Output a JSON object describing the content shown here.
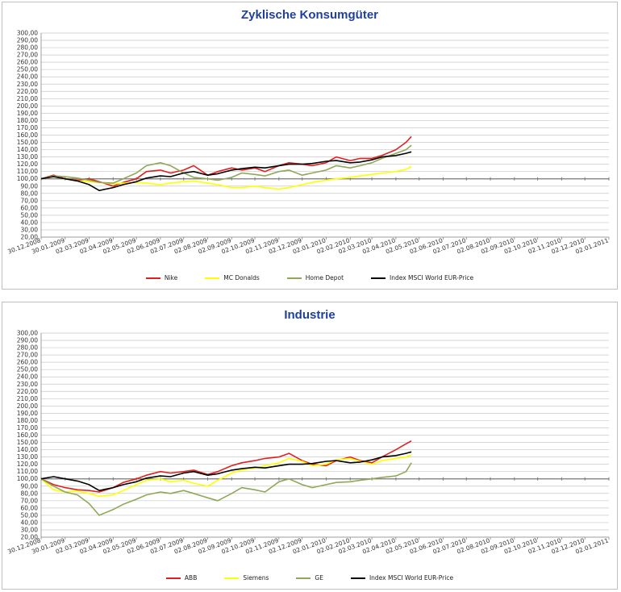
{
  "chart_data": [
    {
      "type": "line",
      "title": "Zyklische Konsumgüter",
      "ylim": [
        20,
        300
      ],
      "y_ticks": [
        "20,00",
        "30,00",
        "40,00",
        "50,00",
        "60,00",
        "70,00",
        "80,00",
        "90,00",
        "100,00",
        "110,00",
        "120,00",
        "130,00",
        "140,00",
        "150,00",
        "160,00",
        "170,00",
        "180,00",
        "190,00",
        "200,00",
        "210,00",
        "220,00",
        "230,00",
        "240,00",
        "250,00",
        "260,00",
        "270,00",
        "280,00",
        "290,00",
        "300,00"
      ],
      "x_ticks": [
        "30.12.2008",
        "30.01.2009",
        "02.03.2009",
        "02.04.2009",
        "02.05.2009",
        "02.06.2009",
        "02.07.2009",
        "02.08.2009",
        "02.09.2009",
        "02.10.2009",
        "02.11.2009",
        "02.12.2009",
        "02.01.2010",
        "02.02.2010",
        "02.03.2010",
        "02.04.2010",
        "02.05.2010",
        "02.06.2010",
        "02.07.2010",
        "02.08.2010",
        "02.09.2010",
        "02.10.2010",
        "02.11.2010",
        "02.12.2010",
        "02.01.2011"
      ],
      "baseline": 100,
      "grid": true,
      "legend_position": "bottom",
      "series": [
        {
          "name": "Nike",
          "color": "#e02020",
          "x": [
            "2008-12-30",
            "2009-01-15",
            "2009-01-30",
            "2009-02-15",
            "2009-03-02",
            "2009-03-15",
            "2009-04-02",
            "2009-04-15",
            "2009-05-02",
            "2009-05-15",
            "2009-06-02",
            "2009-06-15",
            "2009-07-02",
            "2009-07-15",
            "2009-08-02",
            "2009-08-15",
            "2009-09-02",
            "2009-09-15",
            "2009-10-02",
            "2009-10-15",
            "2009-11-02",
            "2009-11-15",
            "2009-12-02",
            "2009-12-15",
            "2010-01-02",
            "2010-01-15",
            "2010-02-02",
            "2010-02-15",
            "2010-03-02",
            "2010-03-15",
            "2010-04-02",
            "2010-04-15",
            "2010-04-22"
          ],
          "y": [
            100,
            105,
            100,
            98,
            100,
            96,
            90,
            95,
            100,
            110,
            112,
            108,
            112,
            118,
            105,
            110,
            115,
            112,
            115,
            110,
            118,
            122,
            120,
            118,
            122,
            130,
            125,
            128,
            128,
            132,
            140,
            150,
            158
          ]
        },
        {
          "name": "MC Donalds",
          "color": "#ffff00",
          "x": [
            "2008-12-30",
            "2009-01-15",
            "2009-01-30",
            "2009-02-15",
            "2009-03-02",
            "2009-03-15",
            "2009-04-02",
            "2009-04-15",
            "2009-05-02",
            "2009-05-15",
            "2009-06-02",
            "2009-06-15",
            "2009-07-02",
            "2009-07-15",
            "2009-08-02",
            "2009-08-15",
            "2009-09-02",
            "2009-09-15",
            "2009-10-02",
            "2009-10-15",
            "2009-11-02",
            "2009-11-15",
            "2009-12-02",
            "2009-12-15",
            "2010-01-02",
            "2010-01-15",
            "2010-02-02",
            "2010-02-15",
            "2010-03-02",
            "2010-03-15",
            "2010-04-02",
            "2010-04-15",
            "2010-04-22"
          ],
          "y": [
            100,
            103,
            100,
            97,
            96,
            95,
            93,
            94,
            95,
            94,
            92,
            94,
            96,
            97,
            94,
            92,
            88,
            88,
            90,
            88,
            86,
            88,
            92,
            95,
            98,
            100,
            102,
            104,
            106,
            108,
            110,
            113,
            117
          ]
        },
        {
          "name": "Home Depot",
          "color": "#8fa858",
          "x": [
            "2008-12-30",
            "2009-01-15",
            "2009-01-30",
            "2009-02-15",
            "2009-03-02",
            "2009-03-15",
            "2009-04-02",
            "2009-04-15",
            "2009-05-02",
            "2009-05-15",
            "2009-06-02",
            "2009-06-15",
            "2009-07-02",
            "2009-07-15",
            "2009-08-02",
            "2009-08-15",
            "2009-09-02",
            "2009-09-15",
            "2009-10-02",
            "2009-10-15",
            "2009-11-02",
            "2009-11-15",
            "2009-12-02",
            "2009-12-15",
            "2010-01-02",
            "2010-01-15",
            "2010-02-02",
            "2010-02-15",
            "2010-03-02",
            "2010-03-15",
            "2010-04-02",
            "2010-04-15",
            "2010-04-22"
          ],
          "y": [
            100,
            104,
            103,
            101,
            98,
            95,
            94,
            100,
            108,
            118,
            122,
            118,
            108,
            102,
            100,
            98,
            102,
            108,
            106,
            104,
            110,
            112,
            105,
            108,
            112,
            118,
            115,
            118,
            122,
            128,
            135,
            140,
            146
          ]
        },
        {
          "name": "Index MSCI World EUR-Price",
          "color": "#000000",
          "x": [
            "2008-12-30",
            "2009-01-15",
            "2009-01-30",
            "2009-02-15",
            "2009-03-02",
            "2009-03-15",
            "2009-04-02",
            "2009-04-15",
            "2009-05-02",
            "2009-05-15",
            "2009-06-02",
            "2009-06-15",
            "2009-07-02",
            "2009-07-15",
            "2009-08-02",
            "2009-08-15",
            "2009-09-02",
            "2009-09-15",
            "2009-10-02",
            "2009-10-15",
            "2009-11-02",
            "2009-11-15",
            "2009-12-02",
            "2009-12-15",
            "2010-01-02",
            "2010-01-15",
            "2010-02-02",
            "2010-02-15",
            "2010-03-02",
            "2010-03-15",
            "2010-04-02",
            "2010-04-15",
            "2010-04-22"
          ],
          "y": [
            100,
            103,
            100,
            97,
            92,
            84,
            88,
            92,
            96,
            101,
            104,
            103,
            108,
            110,
            105,
            107,
            112,
            114,
            116,
            115,
            118,
            120,
            120,
            121,
            124,
            125,
            122,
            123,
            126,
            130,
            132,
            135,
            137
          ]
        }
      ]
    },
    {
      "type": "line",
      "title": "Industrie",
      "ylim": [
        20,
        300
      ],
      "y_ticks": [
        "20,00",
        "30,00",
        "40,00",
        "50,00",
        "60,00",
        "70,00",
        "80,00",
        "90,00",
        "100,00",
        "110,00",
        "120,00",
        "130,00",
        "140,00",
        "150,00",
        "160,00",
        "170,00",
        "180,00",
        "190,00",
        "200,00",
        "210,00",
        "220,00",
        "230,00",
        "240,00",
        "250,00",
        "260,00",
        "270,00",
        "280,00",
        "290,00",
        "300,00"
      ],
      "x_ticks": [
        "30.12.2008",
        "30.01.2009",
        "02.03.2009",
        "02.04.2009",
        "02.05.2009",
        "02.06.2009",
        "02.07.2009",
        "02.08.2009",
        "02.09.2009",
        "02.10.2009",
        "02.11.2009",
        "02.12.2009",
        "02.01.2010",
        "02.02.2010",
        "02.03.2010",
        "02.04.2010",
        "02.05.2010",
        "02.06.2010",
        "02.07.2010",
        "02.08.2010",
        "02.09.2010",
        "02.10.2010",
        "02.11.2010",
        "02.12.2010",
        "02.01.2011"
      ],
      "baseline": 100,
      "grid": true,
      "legend_position": "bottom",
      "series": [
        {
          "name": "ABB",
          "color": "#e02020",
          "x": [
            "2008-12-30",
            "2009-01-15",
            "2009-01-30",
            "2009-02-15",
            "2009-03-02",
            "2009-03-15",
            "2009-04-02",
            "2009-04-15",
            "2009-05-02",
            "2009-05-15",
            "2009-06-02",
            "2009-06-15",
            "2009-07-02",
            "2009-07-15",
            "2009-08-02",
            "2009-08-15",
            "2009-09-02",
            "2009-09-15",
            "2009-10-02",
            "2009-10-15",
            "2009-11-02",
            "2009-11-15",
            "2009-12-02",
            "2009-12-15",
            "2010-01-02",
            "2010-01-15",
            "2010-02-02",
            "2010-02-15",
            "2010-03-02",
            "2010-03-15",
            "2010-04-02",
            "2010-04-15",
            "2010-04-22"
          ],
          "y": [
            100,
            92,
            88,
            85,
            84,
            82,
            88,
            95,
            100,
            105,
            110,
            108,
            110,
            112,
            106,
            110,
            118,
            122,
            125,
            128,
            130,
            135,
            125,
            120,
            118,
            125,
            130,
            125,
            122,
            130,
            140,
            148,
            152
          ]
        },
        {
          "name": "Siemens",
          "color": "#ffff00",
          "x": [
            "2008-12-30",
            "2009-01-15",
            "2009-01-30",
            "2009-02-15",
            "2009-03-02",
            "2009-03-15",
            "2009-04-02",
            "2009-04-15",
            "2009-05-02",
            "2009-05-15",
            "2009-06-02",
            "2009-06-15",
            "2009-07-02",
            "2009-07-15",
            "2009-08-02",
            "2009-08-15",
            "2009-09-02",
            "2009-09-15",
            "2009-10-02",
            "2009-10-15",
            "2009-11-02",
            "2009-11-15",
            "2009-12-02",
            "2009-12-15",
            "2010-01-02",
            "2010-01-15",
            "2010-02-02",
            "2010-02-15",
            "2010-03-02",
            "2010-03-15",
            "2010-04-02",
            "2010-04-15",
            "2010-04-22"
          ],
          "y": [
            100,
            85,
            82,
            83,
            80,
            76,
            78,
            84,
            92,
            98,
            100,
            96,
            98,
            94,
            90,
            98,
            108,
            112,
            115,
            118,
            122,
            128,
            124,
            118,
            120,
            126,
            128,
            124,
            120,
            125,
            128,
            130,
            133
          ]
        },
        {
          "name": "GE",
          "color": "#8fa858",
          "x": [
            "2008-12-30",
            "2009-01-15",
            "2009-01-30",
            "2009-02-15",
            "2009-03-02",
            "2009-03-15",
            "2009-04-02",
            "2009-04-15",
            "2009-05-02",
            "2009-05-15",
            "2009-06-02",
            "2009-06-15",
            "2009-07-02",
            "2009-07-15",
            "2009-08-02",
            "2009-08-15",
            "2009-09-02",
            "2009-09-15",
            "2009-10-02",
            "2009-10-15",
            "2009-11-02",
            "2009-11-15",
            "2009-12-02",
            "2009-12-15",
            "2010-01-02",
            "2010-01-15",
            "2010-02-02",
            "2010-02-15",
            "2010-03-02",
            "2010-03-15",
            "2010-04-02",
            "2010-04-15",
            "2010-04-22"
          ],
          "y": [
            100,
            90,
            82,
            78,
            66,
            50,
            58,
            65,
            72,
            78,
            82,
            80,
            84,
            80,
            74,
            70,
            80,
            88,
            85,
            82,
            96,
            100,
            92,
            88,
            92,
            95,
            96,
            98,
            100,
            102,
            104,
            110,
            122
          ]
        },
        {
          "name": "Index MSCI World EUR-Price",
          "color": "#000000",
          "x": [
            "2008-12-30",
            "2009-01-15",
            "2009-01-30",
            "2009-02-15",
            "2009-03-02",
            "2009-03-15",
            "2009-04-02",
            "2009-04-15",
            "2009-05-02",
            "2009-05-15",
            "2009-06-02",
            "2009-06-15",
            "2009-07-02",
            "2009-07-15",
            "2009-08-02",
            "2009-08-15",
            "2009-09-02",
            "2009-09-15",
            "2009-10-02",
            "2009-10-15",
            "2009-11-02",
            "2009-11-15",
            "2009-12-02",
            "2009-12-15",
            "2010-01-02",
            "2010-01-15",
            "2010-02-02",
            "2010-02-15",
            "2010-03-02",
            "2010-03-15",
            "2010-04-02",
            "2010-04-15",
            "2010-04-22"
          ],
          "y": [
            100,
            103,
            100,
            97,
            92,
            84,
            88,
            92,
            96,
            101,
            104,
            103,
            108,
            110,
            105,
            107,
            112,
            114,
            116,
            115,
            118,
            120,
            120,
            121,
            124,
            125,
            122,
            123,
            126,
            130,
            132,
            135,
            137
          ]
        }
      ]
    }
  ]
}
